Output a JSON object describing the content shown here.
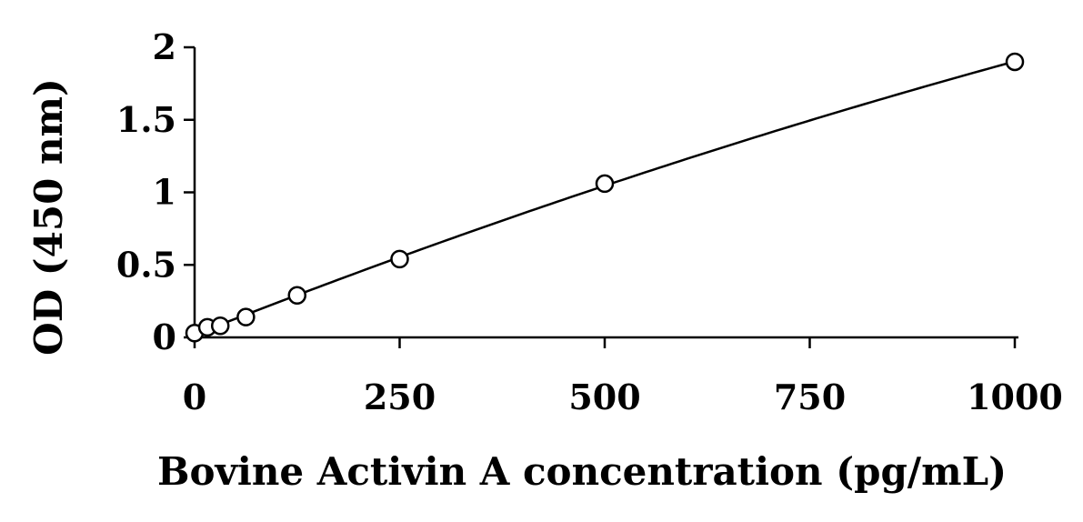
{
  "chart_data": {
    "type": "scatter",
    "title": "",
    "xlabel": "Bovine Activin A concentration (pg/mL)",
    "ylabel": "OD (450 nm)",
    "xlim": [
      0,
      1000
    ],
    "ylim": [
      0,
      2
    ],
    "xticks": [
      0,
      250,
      500,
      750,
      1000
    ],
    "yticks": [
      0,
      0.5,
      1,
      1.5,
      2
    ],
    "xtick_labels": [
      "0",
      "250",
      "500",
      "750",
      "1000"
    ],
    "ytick_labels": [
      "0",
      "0.5",
      "1",
      "1.5",
      "2"
    ],
    "grid": false,
    "legend": "none",
    "marker": "open-circle",
    "trendline": true,
    "series": [
      {
        "x": [
          0,
          15.6,
          31.3,
          62.5,
          125,
          250,
          500,
          1000
        ],
        "y": [
          0.03,
          0.07,
          0.08,
          0.14,
          0.29,
          0.54,
          1.06,
          1.9
        ]
      }
    ]
  }
}
